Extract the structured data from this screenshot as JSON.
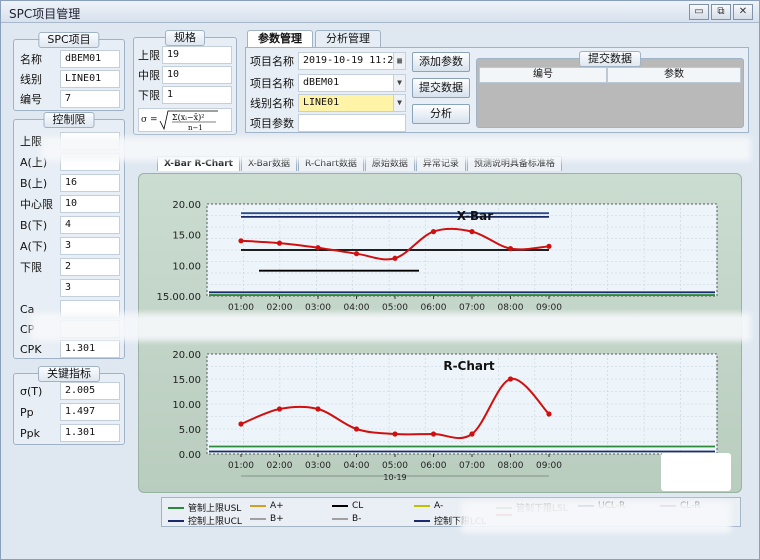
{
  "window": {
    "title": "SPC项目管理",
    "minimize": "▭",
    "restore": "⧉",
    "close": "✕"
  },
  "spc_project": {
    "title": "SPC项目",
    "fields": [
      {
        "label": "名称",
        "value": "dBEM01"
      },
      {
        "label": "线别",
        "value": "LINE01"
      },
      {
        "label": "编号",
        "value": "7"
      }
    ]
  },
  "spec": {
    "title": "规格",
    "fields": [
      {
        "label": "上限",
        "value": "19"
      },
      {
        "label": "中限",
        "value": "10"
      },
      {
        "label": "下限",
        "value": "1"
      }
    ],
    "formula_prefix": "σ ="
  },
  "control_limits": {
    "title": "控制限",
    "fields": [
      {
        "label": "上限",
        "value": ""
      },
      {
        "label": "A(上)",
        "value": ""
      },
      {
        "label": "B(上)",
        "value": "16"
      },
      {
        "label": "中心限",
        "value": "10"
      },
      {
        "label": "B(下)",
        "value": "4"
      },
      {
        "label": "A(下)",
        "value": "3"
      },
      {
        "label": "下限",
        "value": "2"
      },
      {
        "label": "",
        "value": "3"
      }
    ],
    "indices": [
      {
        "label": "Ca",
        "value": ""
      },
      {
        "label": "CP",
        "value": ""
      },
      {
        "label": "CPK",
        "value": "1.301"
      }
    ]
  },
  "key_indicators": {
    "title": "关键指标",
    "fields": [
      {
        "label": "σ(T)",
        "value": "2.005"
      },
      {
        "label": "Pp",
        "value": "1.497"
      },
      {
        "label": "Ppk",
        "value": "1.301"
      }
    ]
  },
  "top_tabs": [
    "参数管理",
    "分析管理"
  ],
  "params": {
    "fields": [
      {
        "label": "项目名称",
        "value": "2019-10-19 11:28"
      },
      {
        "label": "项目名称",
        "value": "dBEM01"
      },
      {
        "label": "线别名称",
        "value": "LINE01"
      },
      {
        "label": "项目参数",
        "value": ""
      }
    ],
    "buttons": [
      "添加参数",
      "提交数据",
      "分析"
    ]
  },
  "submit_data": {
    "title": "提交数据",
    "columns": [
      "编号",
      "参数"
    ]
  },
  "chart_tabs": [
    "X-Bar R-Chart",
    "X-Bar数据",
    "R-Chart数据",
    "原始数据",
    "异常记录",
    "预测说明具备标准格"
  ],
  "legend": [
    {
      "label": "管制上限USL",
      "color": "#2a8a3a"
    },
    {
      "label": "A+",
      "color": "#d0a020"
    },
    {
      "label": "CL",
      "color": "#000000"
    },
    {
      "label": "A-",
      "color": "#c0c000"
    },
    {
      "label": "管制下限LSL",
      "color": "#2a8a3a"
    },
    {
      "label": "UCL-R",
      "color": "#1a3a8a"
    },
    {
      "label": "CL-R",
      "color": "#6a4aa0"
    },
    {
      "label": "控制上限UCL",
      "color": "#1a2a6a"
    },
    {
      "label": "B+",
      "color": "#a0a0a0"
    },
    {
      "label": "B-",
      "color": "#a0a0a0"
    },
    {
      "label": "控制下限LCL",
      "color": "#1a2a6a"
    },
    {
      "label": "",
      "color": "#d01010"
    }
  ],
  "chart_data": [
    {
      "type": "line",
      "title": "X-Bar",
      "x": [
        "01:00",
        "02:00",
        "03:00",
        "04:00",
        "05:00",
        "06:00",
        "07:00",
        "08:00",
        "09:00"
      ],
      "ylim": [
        0,
        20
      ],
      "yticks": [
        "20.00",
        "15.00",
        "10.00",
        "15.00.00"
      ],
      "grid": true,
      "series": [
        {
          "values": [
            12.0,
            11.5,
            10.5,
            9.2,
            8.2,
            14.0,
            14.0,
            10.3,
            10.8
          ],
          "color": "#d01010"
        }
      ],
      "reference_lines": [
        {
          "y": 18.0,
          "color": "#2a4a8a"
        },
        {
          "y": 17.2,
          "color": "#1a2a6a"
        },
        {
          "y": 10.0,
          "color": "#000000"
        },
        {
          "y": 5.5,
          "color": "#000000"
        },
        {
          "y": 0.8,
          "color": "#1a2a6a"
        },
        {
          "y": 0.2,
          "color": "#2a8a3a"
        }
      ]
    },
    {
      "type": "line",
      "title": "R-Chart",
      "x": [
        "01:00",
        "02:00",
        "03:00",
        "04:00",
        "05:00",
        "06:00",
        "07:00",
        "08:00",
        "09:00"
      ],
      "x_caption": "10-19",
      "ylim": [
        0,
        20
      ],
      "yticks": [
        "20.00",
        "15.00",
        "10.00",
        "5.00",
        "0.00"
      ],
      "grid": true,
      "series": [
        {
          "values": [
            6.0,
            9.0,
            9.0,
            5.0,
            4.0,
            4.0,
            4.0,
            15.0,
            8.0
          ],
          "color": "#d01010"
        }
      ],
      "reference_lines": [
        {
          "y": 1.5,
          "color": "#2a8a3a"
        },
        {
          "y": 0.5,
          "color": "#1a2a6a"
        }
      ]
    }
  ]
}
